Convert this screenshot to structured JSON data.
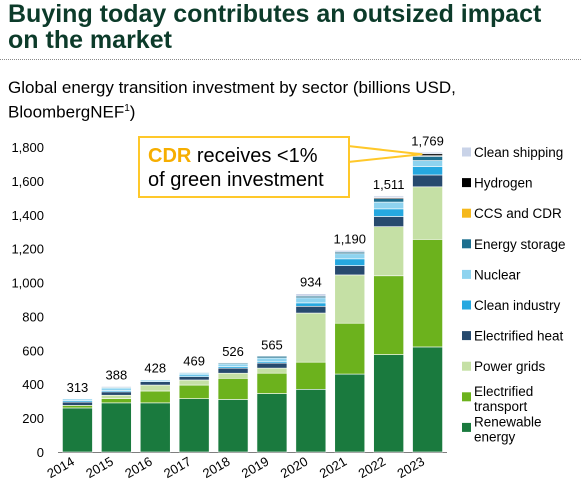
{
  "header": {
    "title": "Buying today contributes an outsized impact on the market"
  },
  "callout": {
    "highlight": "CDR",
    "line1_rest": " receives <1%",
    "line2": "of green investment"
  },
  "chart_data": {
    "type": "bar",
    "stacked": true,
    "title": "Global energy transition investment by sector (billions USD, BloombergNEF",
    "title_footnote": "1",
    "title_end": ")",
    "categories": [
      "2014",
      "2015",
      "2016",
      "2017",
      "2018",
      "2019",
      "2020",
      "2021",
      "2022",
      "2023"
    ],
    "totals": [
      313,
      388,
      428,
      469,
      526,
      565,
      934,
      1190,
      1511,
      1769
    ],
    "total_labels": [
      "313",
      "388",
      "428",
      "469",
      "526",
      "565",
      "934",
      "1,190",
      "1,511",
      "1,769"
    ],
    "ylim": [
      0,
      1800
    ],
    "yticks": [
      0,
      200,
      400,
      600,
      800,
      1000,
      1200,
      1400,
      1600,
      1800
    ],
    "ytick_labels": [
      "0",
      "200",
      "400",
      "600",
      "800",
      "1,000",
      "1,200",
      "1,400",
      "1,600",
      "1,800"
    ],
    "grid": false,
    "legend_position": "right",
    "series": [
      {
        "name": "Renewable energy",
        "color": "#1a7a3e",
        "values": [
          260,
          290,
          290,
          315,
          310,
          345,
          370,
          460,
          575,
          620
        ]
      },
      {
        "name": "Electrified transport",
        "color": "#6cb21d",
        "values": [
          15,
          25,
          70,
          80,
          125,
          120,
          160,
          300,
          465,
          635
        ]
      },
      {
        "name": "Power grids",
        "color": "#c5e0a5",
        "values": [
          0,
          20,
          35,
          30,
          30,
          30,
          290,
          285,
          290,
          310
        ]
      },
      {
        "name": "Electrified heat",
        "color": "#274a6e",
        "values": [
          20,
          20,
          20,
          20,
          30,
          30,
          40,
          55,
          60,
          70
        ]
      },
      {
        "name": "Clean industry",
        "color": "#26a8e0",
        "values": [
          8,
          8,
          0,
          10,
          10,
          10,
          20,
          40,
          45,
          50
        ]
      },
      {
        "name": "Nuclear",
        "color": "#8ed3ef",
        "values": [
          10,
          15,
          10,
          10,
          15,
          20,
          30,
          30,
          40,
          35
        ]
      },
      {
        "name": "Energy storage",
        "color": "#1d6f8f",
        "values": [
          0,
          5,
          3,
          4,
          6,
          10,
          10,
          10,
          20,
          25
        ]
      },
      {
        "name": "CCS and CDR",
        "color": "#f5b81c",
        "values": [
          0,
          0,
          0,
          0,
          0,
          0,
          0,
          0,
          0,
          4
        ]
      },
      {
        "name": "Hydrogen",
        "color": "#000000",
        "values": [
          0,
          0,
          0,
          0,
          0,
          0,
          0,
          0,
          6,
          11
        ]
      },
      {
        "name": "Clean shipping",
        "color": "#c9d3e8",
        "values": [
          0,
          5,
          0,
          0,
          0,
          0,
          14,
          10,
          10,
          9
        ]
      }
    ],
    "legend": [
      {
        "series": 9,
        "lines": [
          "Clean shipping"
        ]
      },
      {
        "series": 8,
        "lines": [
          "Hydrogen"
        ]
      },
      {
        "series": 7,
        "lines": [
          "CCS and CDR"
        ]
      },
      {
        "series": 6,
        "lines": [
          "Energy storage"
        ]
      },
      {
        "series": 5,
        "lines": [
          "Nuclear"
        ]
      },
      {
        "series": 4,
        "lines": [
          "Clean industry"
        ]
      },
      {
        "series": 3,
        "lines": [
          "Electrified heat"
        ]
      },
      {
        "series": 2,
        "lines": [
          "Power grids"
        ]
      },
      {
        "series": 1,
        "lines": [
          "Electrified",
          "transport"
        ]
      },
      {
        "series": 0,
        "lines": [
          "Renewable",
          "energy"
        ]
      }
    ]
  }
}
